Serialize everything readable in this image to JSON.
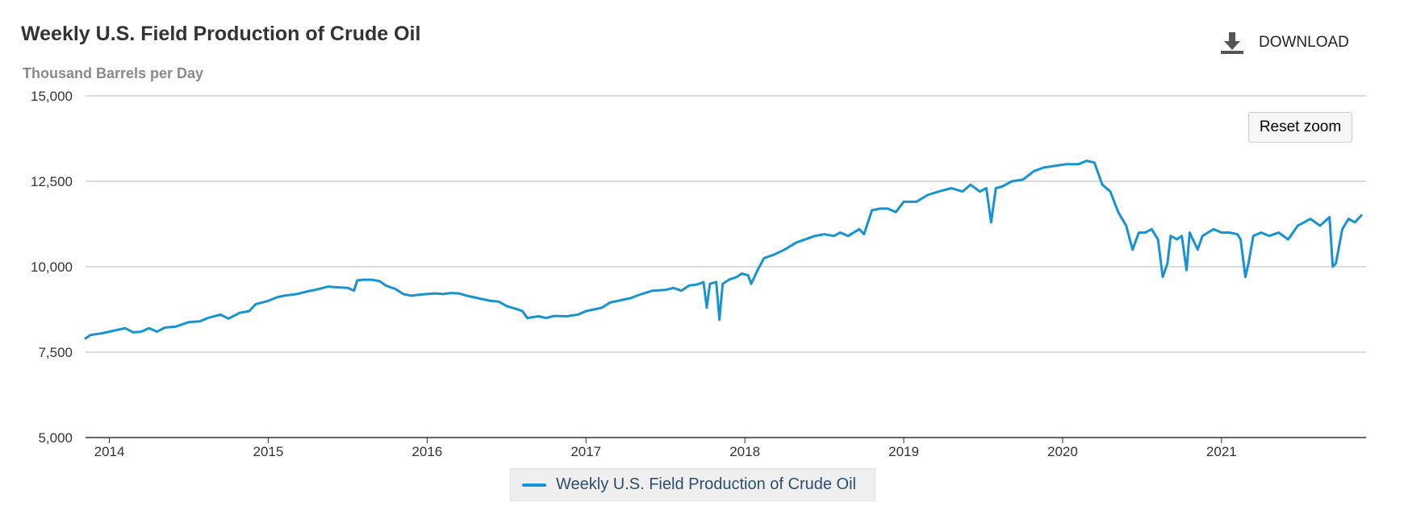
{
  "header": {
    "title": "Weekly U.S. Field Production of Crude Oil",
    "subtitle": "Thousand Barrels per Day",
    "download_label": "DOWNLOAD",
    "download_icon": "download-icon",
    "reset_zoom_label": "Reset zoom"
  },
  "legend": {
    "label": "Weekly U.S. Field Production of Crude Oil"
  },
  "colors": {
    "series": "#1893d2",
    "grid": "#c8c8c8",
    "axis": "#333333"
  },
  "chart_data": {
    "type": "line",
    "title": "Weekly U.S. Field Production of Crude Oil",
    "ylabel": "Thousand Barrels per Day",
    "xlabel": "",
    "ylim": [
      5000,
      15000
    ],
    "xlim": [
      2013.85,
      2021.91
    ],
    "yticks": [
      5000,
      7500,
      10000,
      12500,
      15000
    ],
    "ytick_labels": [
      "5,000",
      "7,500",
      "10,000",
      "12,500",
      "15,000"
    ],
    "xticks": [
      2014,
      2015,
      2016,
      2017,
      2018,
      2019,
      2020,
      2021
    ],
    "xtick_labels": [
      "2014",
      "2015",
      "2016",
      "2017",
      "2018",
      "2019",
      "2020",
      "2021"
    ],
    "grid": true,
    "legend_position": "bottom-center",
    "series": [
      {
        "name": "Weekly U.S. Field Production of Crude Oil",
        "points": [
          [
            2013.85,
            7900
          ],
          [
            2013.88,
            8000
          ],
          [
            2013.95,
            8050
          ],
          [
            2014.0,
            8100
          ],
          [
            2014.05,
            8150
          ],
          [
            2014.1,
            8200
          ],
          [
            2014.15,
            8080
          ],
          [
            2014.2,
            8100
          ],
          [
            2014.25,
            8200
          ],
          [
            2014.3,
            8100
          ],
          [
            2014.35,
            8220
          ],
          [
            2014.42,
            8250
          ],
          [
            2014.5,
            8380
          ],
          [
            2014.57,
            8400
          ],
          [
            2014.62,
            8500
          ],
          [
            2014.7,
            8600
          ],
          [
            2014.75,
            8480
          ],
          [
            2014.82,
            8650
          ],
          [
            2014.88,
            8700
          ],
          [
            2014.92,
            8900
          ],
          [
            2015.0,
            9000
          ],
          [
            2015.05,
            9100
          ],
          [
            2015.1,
            9150
          ],
          [
            2015.18,
            9200
          ],
          [
            2015.25,
            9280
          ],
          [
            2015.32,
            9350
          ],
          [
            2015.38,
            9420
          ],
          [
            2015.42,
            9400
          ],
          [
            2015.5,
            9380
          ],
          [
            2015.54,
            9300
          ],
          [
            2015.56,
            9600
          ],
          [
            2015.6,
            9620
          ],
          [
            2015.65,
            9620
          ],
          [
            2015.7,
            9580
          ],
          [
            2015.74,
            9450
          ],
          [
            2015.8,
            9350
          ],
          [
            2015.85,
            9200
          ],
          [
            2015.9,
            9150
          ],
          [
            2015.95,
            9180
          ],
          [
            2016.0,
            9200
          ],
          [
            2016.05,
            9220
          ],
          [
            2016.1,
            9200
          ],
          [
            2016.15,
            9230
          ],
          [
            2016.2,
            9220
          ],
          [
            2016.25,
            9150
          ],
          [
            2016.32,
            9080
          ],
          [
            2016.4,
            9000
          ],
          [
            2016.45,
            8980
          ],
          [
            2016.5,
            8850
          ],
          [
            2016.55,
            8780
          ],
          [
            2016.6,
            8700
          ],
          [
            2016.63,
            8500
          ],
          [
            2016.7,
            8550
          ],
          [
            2016.75,
            8500
          ],
          [
            2016.8,
            8560
          ],
          [
            2016.88,
            8550
          ],
          [
            2016.95,
            8600
          ],
          [
            2017.0,
            8700
          ],
          [
            2017.05,
            8750
          ],
          [
            2017.1,
            8800
          ],
          [
            2017.15,
            8950
          ],
          [
            2017.2,
            9000
          ],
          [
            2017.28,
            9080
          ],
          [
            2017.35,
            9200
          ],
          [
            2017.42,
            9300
          ],
          [
            2017.5,
            9320
          ],
          [
            2017.55,
            9380
          ],
          [
            2017.6,
            9300
          ],
          [
            2017.65,
            9450
          ],
          [
            2017.7,
            9480
          ],
          [
            2017.74,
            9550
          ],
          [
            2017.76,
            8800
          ],
          [
            2017.78,
            9500
          ],
          [
            2017.82,
            9550
          ],
          [
            2017.84,
            8450
          ],
          [
            2017.86,
            9500
          ],
          [
            2017.9,
            9620
          ],
          [
            2017.95,
            9700
          ],
          [
            2017.98,
            9800
          ],
          [
            2018.02,
            9750
          ],
          [
            2018.04,
            9500
          ],
          [
            2018.08,
            9900
          ],
          [
            2018.12,
            10250
          ],
          [
            2018.18,
            10350
          ],
          [
            2018.25,
            10500
          ],
          [
            2018.32,
            10700
          ],
          [
            2018.38,
            10800
          ],
          [
            2018.44,
            10900
          ],
          [
            2018.5,
            10950
          ],
          [
            2018.56,
            10900
          ],
          [
            2018.6,
            11000
          ],
          [
            2018.65,
            10900
          ],
          [
            2018.72,
            11100
          ],
          [
            2018.75,
            10950
          ],
          [
            2018.8,
            11650
          ],
          [
            2018.85,
            11700
          ],
          [
            2018.9,
            11700
          ],
          [
            2018.95,
            11600
          ],
          [
            2019.0,
            11900
          ],
          [
            2019.08,
            11900
          ],
          [
            2019.15,
            12100
          ],
          [
            2019.22,
            12200
          ],
          [
            2019.3,
            12300
          ],
          [
            2019.37,
            12200
          ],
          [
            2019.42,
            12400
          ],
          [
            2019.48,
            12200
          ],
          [
            2019.52,
            12300
          ],
          [
            2019.55,
            11300
          ],
          [
            2019.58,
            12300
          ],
          [
            2019.62,
            12350
          ],
          [
            2019.68,
            12500
          ],
          [
            2019.75,
            12550
          ],
          [
            2019.82,
            12800
          ],
          [
            2019.88,
            12900
          ],
          [
            2019.95,
            12950
          ],
          [
            2020.02,
            13000
          ],
          [
            2020.1,
            13000
          ],
          [
            2020.15,
            13100
          ],
          [
            2020.2,
            13050
          ],
          [
            2020.25,
            12400
          ],
          [
            2020.3,
            12200
          ],
          [
            2020.35,
            11600
          ],
          [
            2020.4,
            11200
          ],
          [
            2020.44,
            10500
          ],
          [
            2020.48,
            11000
          ],
          [
            2020.52,
            11000
          ],
          [
            2020.56,
            11100
          ],
          [
            2020.6,
            10800
          ],
          [
            2020.63,
            9700
          ],
          [
            2020.66,
            10100
          ],
          [
            2020.68,
            10900
          ],
          [
            2020.72,
            10800
          ],
          [
            2020.75,
            10900
          ],
          [
            2020.78,
            9900
          ],
          [
            2020.8,
            11000
          ],
          [
            2020.85,
            10500
          ],
          [
            2020.88,
            10900
          ],
          [
            2020.95,
            11100
          ],
          [
            2021.0,
            11000
          ],
          [
            2021.05,
            11000
          ],
          [
            2021.1,
            10950
          ],
          [
            2021.12,
            10800
          ],
          [
            2021.15,
            9700
          ],
          [
            2021.17,
            10100
          ],
          [
            2021.2,
            10900
          ],
          [
            2021.25,
            11000
          ],
          [
            2021.3,
            10900
          ],
          [
            2021.36,
            11000
          ],
          [
            2021.42,
            10800
          ],
          [
            2021.48,
            11200
          ],
          [
            2021.52,
            11300
          ],
          [
            2021.56,
            11400
          ],
          [
            2021.62,
            11200
          ],
          [
            2021.68,
            11450
          ],
          [
            2021.7,
            10000
          ],
          [
            2021.72,
            10100
          ],
          [
            2021.76,
            11100
          ],
          [
            2021.8,
            11400
          ],
          [
            2021.84,
            11300
          ],
          [
            2021.88,
            11500
          ]
        ]
      }
    ]
  }
}
